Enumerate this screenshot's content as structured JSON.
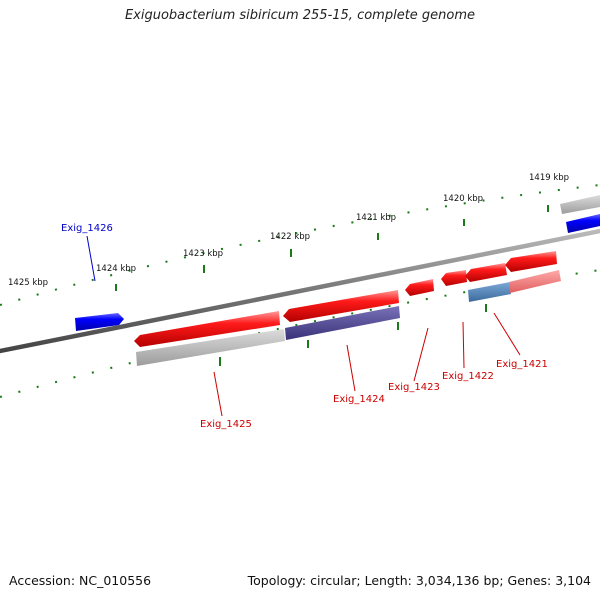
{
  "title": "Exiguobacterium sibiricum 255-15, complete genome",
  "footer": {
    "accession": "Accession: NC_010556",
    "summary": "Topology: circular; Length: 3,034,136 bp; Genes: 3,104"
  },
  "kbp_labels": [
    "1425 kbp",
    "1424 kbp",
    "1423 kbp",
    "1422 kbp",
    "1421 kbp",
    "1420 kbp",
    "1419 kbp"
  ],
  "genes": [
    {
      "name": "Exig_1426",
      "color": "#0000cc"
    },
    {
      "name": "Exig_1425",
      "color": "#cc0000"
    },
    {
      "name": "Exig_1424",
      "color": "#cc0000"
    },
    {
      "name": "Exig_1423",
      "color": "#cc0000"
    },
    {
      "name": "Exig_1422",
      "color": "#cc0000"
    },
    {
      "name": "Exig_1421",
      "color": "#cc0000"
    }
  ],
  "colors": {
    "backbone": "#777777",
    "ticks": "#1a7a1a",
    "forward_gene": "#0000ee",
    "reverse_gene": "#ee0000",
    "feature_grey": "#aaaaaa",
    "feature_purple": "#443c88",
    "feature_steel": "#4477aa",
    "feature_pink": "#ee6666"
  }
}
